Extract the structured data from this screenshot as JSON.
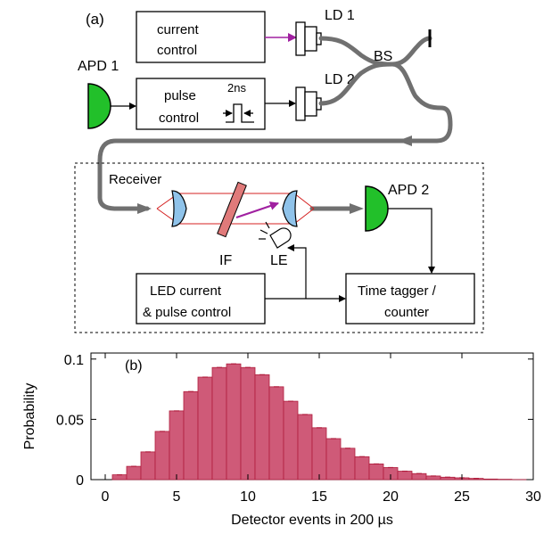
{
  "diagram": {
    "panel_label": "(a)",
    "boxes": {
      "current_control": [
        "current",
        "control"
      ],
      "pulse_control": [
        "pulse",
        "control"
      ],
      "led_control": [
        "LED current",
        "& pulse control"
      ],
      "time_tagger": [
        "Time tagger /",
        "counter"
      ]
    },
    "labels": {
      "ld1": "LD 1",
      "ld2": "LD 2",
      "bs": "BS",
      "apd1": "APD 1",
      "apd2": "APD 2",
      "pulse_width": "2ns",
      "receiver": "Receiver",
      "if_filter": "IF",
      "le": "LE"
    },
    "colors": {
      "fiber": "#707070",
      "apd": "#22c02a",
      "lens": "#8fc3ea",
      "filter": "#e07a7a",
      "beam": "#d42020",
      "arrow": "#a020a0"
    }
  },
  "chart_data": {
    "type": "bar",
    "panel_label": "(b)",
    "xlabel": "Detector events in 200 µs",
    "ylabel": "Probability",
    "x_ticks": [
      "0",
      "5",
      "10",
      "15",
      "20",
      "25",
      "30"
    ],
    "y_ticks": [
      "0",
      "0.05",
      "0.1"
    ],
    "xlim": [
      -1,
      30
    ],
    "ylim": [
      0,
      0.105
    ],
    "bar_color": "#cf5a78",
    "bar_edge": "#b01c3c",
    "categories": [
      0,
      1,
      2,
      3,
      4,
      5,
      6,
      7,
      8,
      9,
      10,
      11,
      12,
      13,
      14,
      15,
      16,
      17,
      18,
      19,
      20,
      21,
      22,
      23,
      24,
      25,
      26,
      27,
      28,
      29
    ],
    "values": [
      0.0,
      0.004,
      0.011,
      0.023,
      0.04,
      0.057,
      0.073,
      0.085,
      0.093,
      0.096,
      0.093,
      0.087,
      0.077,
      0.065,
      0.054,
      0.043,
      0.034,
      0.026,
      0.019,
      0.013,
      0.01,
      0.007,
      0.005,
      0.003,
      0.002,
      0.0015,
      0.001,
      0.0005,
      0.0003,
      0.0001
    ]
  }
}
